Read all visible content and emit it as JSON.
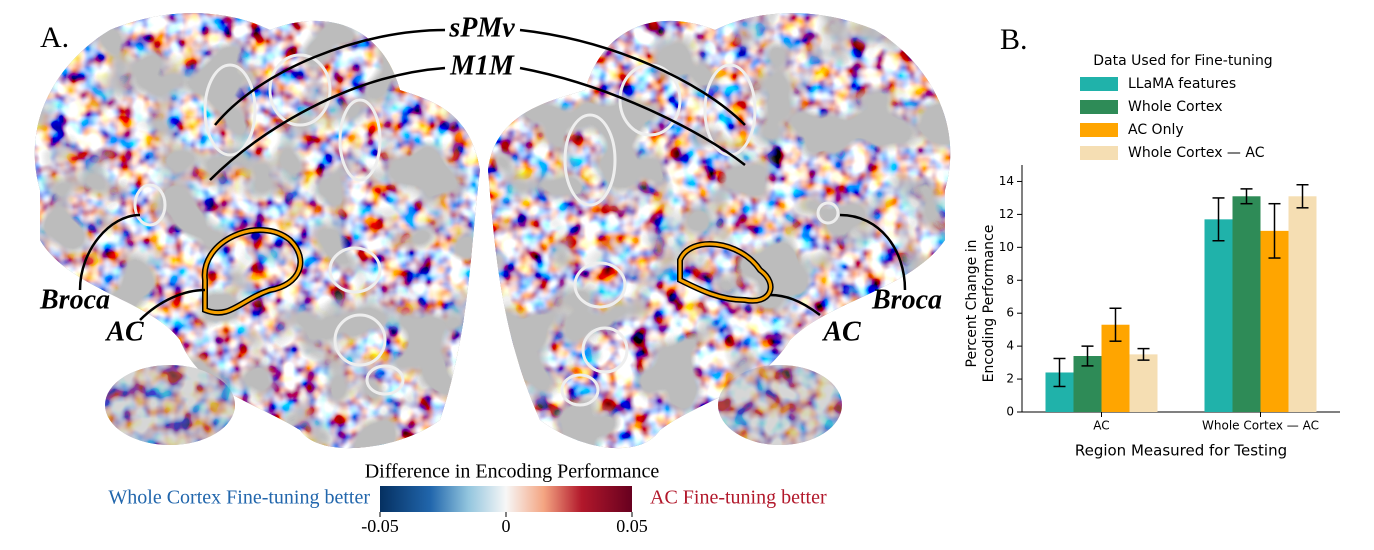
{
  "panel_a": {
    "label": "A.",
    "annotations": {
      "spmv": "sPMv",
      "m1m": "M1M",
      "broca_left": "Broca",
      "broca_right": "Broca",
      "ac_left": "AC",
      "ac_right": "AC"
    },
    "colorbar": {
      "title": "Difference in Encoding Performance",
      "left_label": "Whole Cortex Fine-tuning better",
      "right_label": "AC Fine-tuning better",
      "lim": [
        -0.05,
        0.05
      ],
      "ticks": [
        -0.05,
        0,
        0.05
      ]
    }
  },
  "chart_data": {
    "type": "bar",
    "panel_label": "B.",
    "legend_title": "Data Used for Fine-tuning",
    "xlabel": "Region Measured for Testing",
    "ylabel": [
      "Percent Change in",
      "Encoding Performance"
    ],
    "categories": [
      "AC",
      "Whole Cortex — AC"
    ],
    "series": [
      {
        "name": "LLaMA features",
        "color": "#20b2aa",
        "values": [
          2.4,
          11.7
        ],
        "errors": [
          0.85,
          1.3
        ]
      },
      {
        "name": "Whole Cortex",
        "color": "#2e8b57",
        "values": [
          3.4,
          13.1
        ],
        "errors": [
          0.6,
          0.45
        ]
      },
      {
        "name": "AC Only",
        "color": "#ffa500",
        "values": [
          5.3,
          11.0
        ],
        "errors": [
          1.0,
          1.65
        ]
      },
      {
        "name": "Whole Cortex — AC",
        "color": "#f5deb3",
        "values": [
          3.5,
          13.1
        ],
        "errors": [
          0.35,
          0.7
        ]
      }
    ],
    "ylim": [
      0,
      15
    ],
    "yticks": [
      0,
      2,
      4,
      6,
      8,
      10,
      12,
      14
    ],
    "legend": "upper-center"
  }
}
